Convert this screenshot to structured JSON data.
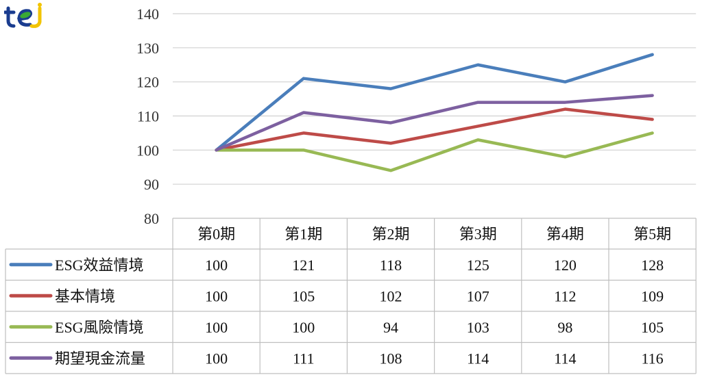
{
  "logo": {
    "text": "tej",
    "colors": [
      "#1a3c8f",
      "#f2c400",
      "#3aa935"
    ]
  },
  "chart_data": {
    "type": "line",
    "categories": [
      "第0期",
      "第1期",
      "第2期",
      "第3期",
      "第4期",
      "第5期"
    ],
    "ylim": [
      80,
      140
    ],
    "yticks": [
      80,
      90,
      100,
      110,
      120,
      130,
      140
    ],
    "grid": true,
    "legend": "data-table",
    "series": [
      {
        "name": "ESG效益情境",
        "color": "#4a7ebb",
        "values": [
          100,
          121,
          118,
          125,
          120,
          128
        ]
      },
      {
        "name": "基本情境",
        "color": "#be4b48",
        "values": [
          100,
          105,
          102,
          107,
          112,
          109
        ]
      },
      {
        "name": "ESG風險情境",
        "color": "#98b954",
        "values": [
          100,
          100,
          94,
          103,
          98,
          105
        ]
      },
      {
        "name": "期望現金流量",
        "color": "#7d60a0",
        "values": [
          100,
          111,
          108,
          114,
          114,
          116
        ]
      }
    ]
  }
}
